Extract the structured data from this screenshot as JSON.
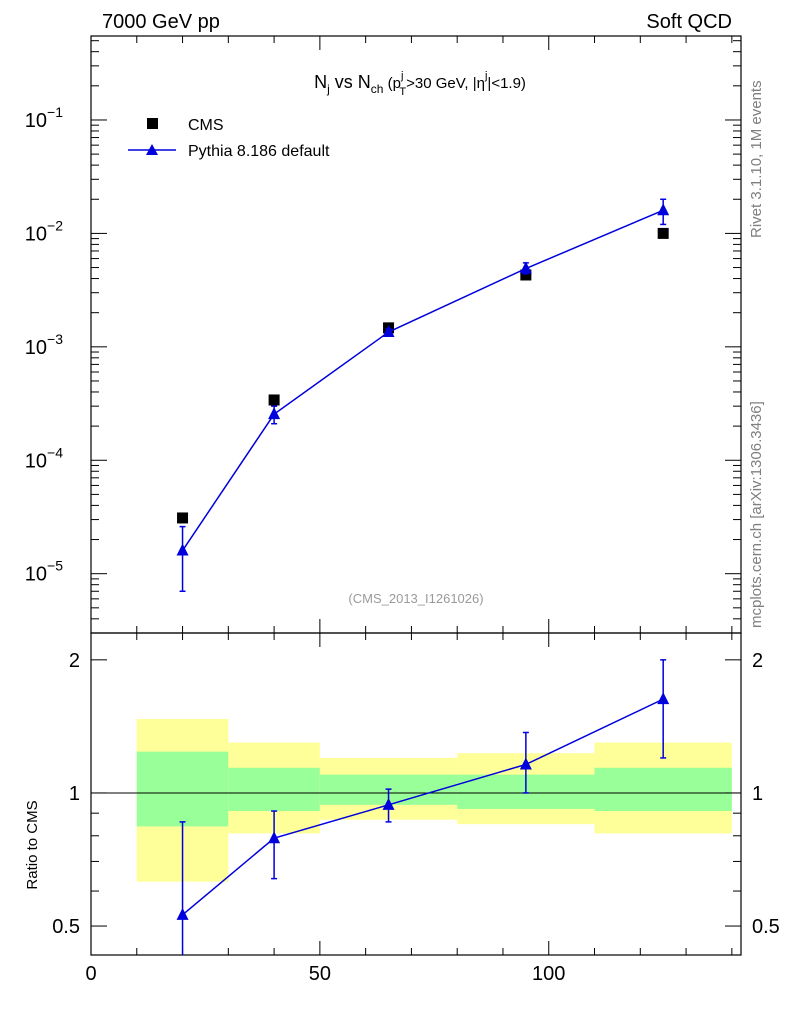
{
  "header": {
    "left": "7000 GeV pp",
    "right": "Soft QCD"
  },
  "side_labels": {
    "rivet": "Rivet 3.1.10,  1M events",
    "mcplots": "mcplots.cern.ch [arXiv:1306.3436]"
  },
  "watermark": "(CMS_2013_I1261026)",
  "colors": {
    "mc": "#0000dd",
    "data": "#000000",
    "band_outer": "#ffff99",
    "band_inner": "#99ff99"
  },
  "chart_data": [
    {
      "type": "scatter",
      "panel": "main",
      "title": "Nj vs Nch (pTj>30 GeV, |ηj|<1.9)",
      "title_parts": {
        "n1": "N",
        "n1_sub": "j",
        "vs": " vs ",
        "n2": "N",
        "n2_sub": "ch",
        "open": " (p",
        "pt_sup": "j",
        "pt_sub": "T",
        "cut": ">30 GeV, |η",
        "eta_sup": "j",
        "close": "|<1.9)"
      },
      "yscale": "log",
      "xlim": [
        0,
        142
      ],
      "ylim": [
        3e-06,
        0.55
      ],
      "yticks": [
        {
          "v": 1e-05,
          "base": "10",
          "exp": "−5"
        },
        {
          "v": 0.0001,
          "base": "10",
          "exp": "−4"
        },
        {
          "v": 0.001,
          "base": "10",
          "exp": "−3"
        },
        {
          "v": 0.01,
          "base": "10",
          "exp": "−2"
        },
        {
          "v": 0.1,
          "base": "10",
          "exp": "−1"
        }
      ],
      "legend": {
        "position": "top-left",
        "entries": [
          "CMS",
          "Pythia 8.186 default"
        ]
      },
      "series": [
        {
          "name": "CMS",
          "marker": "square",
          "x": [
            20,
            40,
            65,
            95,
            125
          ],
          "y": [
            3.1e-05,
            0.00034,
            0.00147,
            0.0043,
            0.01
          ]
        },
        {
          "name": "Pythia 8.186 default",
          "marker": "triangle",
          "x": [
            20,
            40,
            65,
            95,
            125
          ],
          "y": [
            1.6e-05,
            0.000255,
            0.00135,
            0.0049,
            0.016
          ],
          "err_lo": [
            7e-06,
            0.00021,
            0.00127,
            0.0044,
            0.012
          ],
          "err_hi": [
            2.6e-05,
            0.0003,
            0.00144,
            0.0055,
            0.02
          ]
        }
      ]
    },
    {
      "type": "scatter",
      "panel": "ratio",
      "ylabel": "Ratio to CMS",
      "yscale": "log",
      "xlim": [
        0,
        142
      ],
      "ylim": [
        0.43,
        2.3
      ],
      "xticks": [
        {
          "v": 0,
          "label": "0"
        },
        {
          "v": 50,
          "label": "50"
        },
        {
          "v": 100,
          "label": "100"
        }
      ],
      "yticks": [
        {
          "v": 0.5,
          "label": "0.5"
        },
        {
          "v": 1,
          "label": "1"
        },
        {
          "v": 2,
          "label": "2"
        }
      ],
      "bands": [
        {
          "x0": 10,
          "x1": 30,
          "outer": [
            0.63,
            1.47
          ],
          "inner": [
            0.84,
            1.24
          ]
        },
        {
          "x0": 30,
          "x1": 50,
          "outer": [
            0.81,
            1.3
          ],
          "inner": [
            0.91,
            1.14
          ]
        },
        {
          "x0": 50,
          "x1": 80,
          "outer": [
            0.87,
            1.2
          ],
          "inner": [
            0.94,
            1.1
          ]
        },
        {
          "x0": 80,
          "x1": 110,
          "outer": [
            0.85,
            1.23
          ],
          "inner": [
            0.92,
            1.1
          ]
        },
        {
          "x0": 110,
          "x1": 140,
          "outer": [
            0.81,
            1.3
          ],
          "inner": [
            0.91,
            1.14
          ]
        }
      ],
      "series": [
        {
          "name": "Pythia 8.186 default",
          "marker": "triangle",
          "x": [
            20,
            40,
            65,
            95,
            125
          ],
          "y": [
            0.53,
            0.79,
            0.94,
            1.16,
            1.63
          ],
          "err_lo": [
            0.42,
            0.64,
            0.86,
            1.0,
            1.2
          ],
          "err_hi": [
            0.86,
            0.91,
            1.02,
            1.37,
            2.0
          ]
        }
      ]
    }
  ]
}
